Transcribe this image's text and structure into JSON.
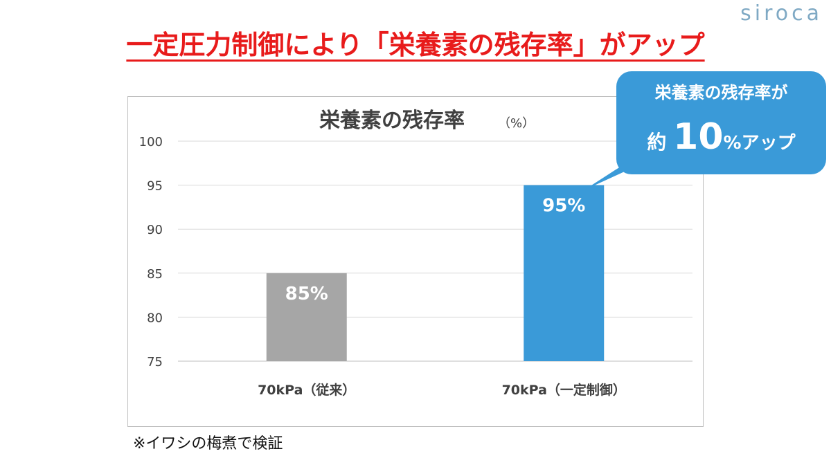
{
  "brand": {
    "logo_text": "siroca"
  },
  "headline": "一定圧力制御により「栄養素の残存率」がアップ",
  "callout": {
    "line1": "栄養素の残存率が",
    "prefix": "約",
    "number": "10",
    "suffix": "%アップ"
  },
  "note": "※イワシの梅煮で検証",
  "colors": {
    "accent": "#3a9ad8",
    "headline": "#e81b1b",
    "bar_old": "#a6a6a6",
    "bar_new": "#3a9ad8"
  },
  "chart_data": {
    "type": "bar",
    "title": "栄養素の残存率",
    "title_unit": "（%）",
    "categories": [
      "70kPa（従来）",
      "70kPa（一定制御）"
    ],
    "values": [
      85,
      95
    ],
    "data_labels": [
      "85%",
      "95%"
    ],
    "bar_colors": [
      "#a6a6a6",
      "#3a9ad8"
    ],
    "ylim": [
      75,
      100
    ],
    "yticks": [
      75,
      80,
      85,
      90,
      95,
      100
    ],
    "grid": true,
    "legend": "none"
  }
}
